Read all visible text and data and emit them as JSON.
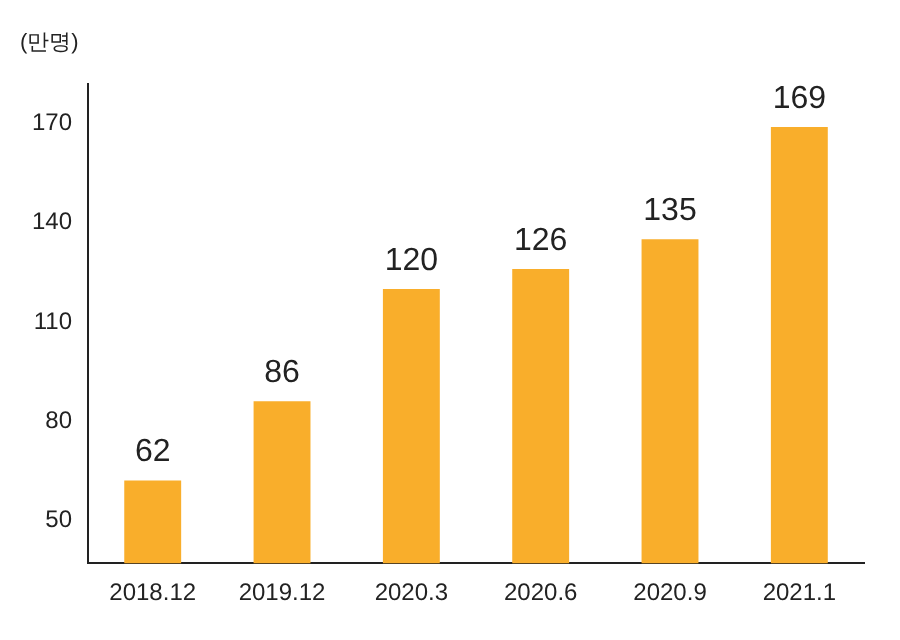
{
  "chart_data": {
    "type": "bar",
    "ylabel": "(만명)",
    "categories": [
      "2018.12",
      "2019.12",
      "2020.3",
      "2020.6",
      "2020.9",
      "2021.1"
    ],
    "values": [
      62,
      86,
      120,
      126,
      135,
      169
    ],
    "color": "#f9ae2b",
    "ylim": [
      37,
      182
    ],
    "yticks": [
      50,
      80,
      110,
      140,
      170
    ],
    "grid": false,
    "data_labels": true
  }
}
